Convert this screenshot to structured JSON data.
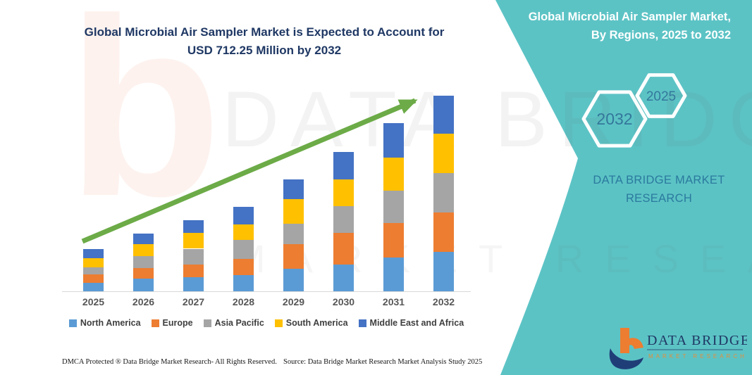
{
  "page": {
    "background": "#ffffff",
    "accent_teal": "#5CC3C5",
    "title_navy": "#1F3864"
  },
  "left": {
    "title_line1": "Global Microbial Air Sampler Market is Expected to Account for",
    "title_line2": "USD 712.25 Million by 2032",
    "footer_dmca": "DMCA Protected ® Data Bridge Market Research-  All Rights Reserved.",
    "footer_source": "Source: Data Bridge Market Research  Market Analysis Study 2025"
  },
  "right_panel": {
    "background": "#5CC3C5",
    "title_line1": "Global Microbial Air Sampler Market,",
    "title_line2": "By Regions, 2025 to 2032",
    "hexagons": [
      {
        "label": "2032"
      },
      {
        "label": "2025"
      }
    ],
    "hexagon_text_color": "#34789B",
    "brand_line1": "DATA BRIDGE MARKET",
    "brand_line2": "RESEARCH",
    "logo": {
      "icon": "data-bridge-b-logo",
      "name": "DATA BRIDGE",
      "tagline": "MARKET RESEARCH",
      "name_color": "#1F3864",
      "tagline_color": "#E58E3A",
      "b_orange": "#ED7D31",
      "b_navy": "#1F3E78"
    }
  },
  "watermarks": {
    "logo_glyph": "b",
    "big_text": "DATA BRIDGE",
    "mid_text": "MARKET RESEARCH"
  },
  "chart_data": {
    "type": "bar",
    "stacked": true,
    "title": "Global Microbial Air Sampler Market is Expected to Account for USD 712.25 Million by 2032",
    "unit": "USD Million",
    "xlabel": "",
    "ylabel": "",
    "ylim": [
      0,
      750
    ],
    "grid": false,
    "legend_position": "bottom",
    "categories": [
      "2025",
      "2026",
      "2027",
      "2028",
      "2029",
      "2030",
      "2031",
      "2032"
    ],
    "series": [
      {
        "name": "North America",
        "color": "#5B9BD5",
        "values": [
          30,
          45,
          50,
          58,
          82,
          97,
          123,
          143
        ]
      },
      {
        "name": "Europe",
        "color": "#ED7D31",
        "values": [
          32,
          40,
          47,
          60,
          90,
          116,
          125,
          143
        ]
      },
      {
        "name": "Asia Pacific",
        "color": "#A5A5A5",
        "values": [
          26,
          43,
          58,
          68,
          73,
          96,
          118,
          145
        ]
      },
      {
        "name": "South America",
        "color": "#FFC000",
        "values": [
          33,
          44,
          57,
          57,
          91,
          99,
          122,
          142
        ]
      },
      {
        "name": "Middle East and Africa",
        "color": "#4472C4",
        "values": [
          34,
          38,
          47,
          64,
          71,
          100,
          124,
          139.25
        ]
      }
    ],
    "totals_estimated": [
      155,
      210,
      259,
      307,
      407,
      508,
      612,
      712.25
    ],
    "highlight": "USD 712.25 Million by 2032",
    "trend_arrow_color": "#6CAB47",
    "axis_line_color": "#D8D8D8",
    "tick_label_color": "#575757"
  }
}
